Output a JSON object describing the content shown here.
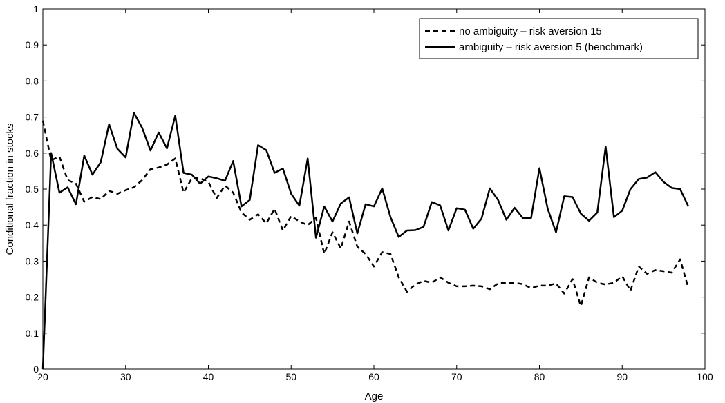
{
  "chart_data": {
    "type": "line",
    "title": "",
    "xlabel": "Age",
    "ylabel": "Conditional fraction in stocks",
    "xlim": [
      20,
      100
    ],
    "ylim": [
      0,
      1
    ],
    "xticks": [
      20,
      30,
      40,
      50,
      60,
      70,
      80,
      90,
      100
    ],
    "yticks": [
      0,
      0.1,
      0.2,
      0.3,
      0.4,
      0.5,
      0.6,
      0.7,
      0.8,
      0.9,
      1
    ],
    "xtick_labels": [
      "20",
      "30",
      "40",
      "50",
      "60",
      "70",
      "80",
      "90",
      "100"
    ],
    "ytick_labels": [
      "0",
      "0.1",
      "0.2",
      "0.3",
      "0.4",
      "0.5",
      "0.6",
      "0.7",
      "0.8",
      "0.9",
      "1"
    ],
    "grid": false,
    "legend_position": "top-right",
    "x": [
      20,
      21,
      22,
      23,
      24,
      25,
      26,
      27,
      28,
      29,
      30,
      31,
      32,
      33,
      34,
      35,
      36,
      37,
      38,
      39,
      40,
      41,
      42,
      43,
      44,
      45,
      46,
      47,
      48,
      49,
      50,
      51,
      52,
      53,
      54,
      55,
      56,
      57,
      58,
      59,
      60,
      61,
      62,
      63,
      64,
      65,
      66,
      67,
      68,
      69,
      70,
      71,
      72,
      73,
      74,
      75,
      76,
      77,
      78,
      79,
      80,
      81,
      82,
      83,
      84,
      85,
      86,
      87,
      88,
      89,
      90,
      91,
      92,
      93,
      94,
      95,
      96,
      97,
      98
    ],
    "series": [
      {
        "name": "no ambiguity – risk aversion 15",
        "style": "dashed",
        "color": "#000000",
        "values": [
          0.69,
          0.58,
          0.59,
          0.525,
          0.515,
          0.465,
          0.478,
          0.472,
          0.495,
          0.487,
          0.497,
          0.505,
          0.525,
          0.555,
          0.56,
          0.568,
          0.585,
          0.49,
          0.53,
          0.53,
          0.52,
          0.475,
          0.51,
          0.49,
          0.435,
          0.415,
          0.43,
          0.405,
          0.445,
          0.385,
          0.425,
          0.41,
          0.4,
          0.42,
          0.32,
          0.38,
          0.335,
          0.41,
          0.34,
          0.32,
          0.285,
          0.325,
          0.32,
          0.255,
          0.215,
          0.235,
          0.245,
          0.24,
          0.255,
          0.24,
          0.23,
          0.23,
          0.232,
          0.23,
          0.222,
          0.238,
          0.24,
          0.24,
          0.236,
          0.225,
          0.232,
          0.232,
          0.238,
          0.21,
          0.25,
          0.175,
          0.255,
          0.24,
          0.235,
          0.24,
          0.258,
          0.218,
          0.285,
          0.265,
          0.275,
          0.272,
          0.268,
          0.305,
          0.225
        ]
      },
      {
        "name": "ambiguity – risk aversion 5 (benchmark)",
        "style": "solid",
        "color": "#000000",
        "values": [
          0.0,
          0.6,
          0.49,
          0.505,
          0.458,
          0.593,
          0.54,
          0.575,
          0.68,
          0.612,
          0.588,
          0.712,
          0.67,
          0.607,
          0.657,
          0.613,
          0.704,
          0.545,
          0.54,
          0.515,
          0.535,
          0.53,
          0.523,
          0.578,
          0.452,
          0.47,
          0.622,
          0.608,
          0.545,
          0.557,
          0.487,
          0.454,
          0.585,
          0.365,
          0.452,
          0.41,
          0.46,
          0.477,
          0.377,
          0.458,
          0.452,
          0.502,
          0.422,
          0.367,
          0.385,
          0.386,
          0.395,
          0.464,
          0.455,
          0.385,
          0.447,
          0.443,
          0.39,
          0.418,
          0.502,
          0.47,
          0.415,
          0.448,
          0.42,
          0.42,
          0.558,
          0.445,
          0.38,
          0.48,
          0.478,
          0.432,
          0.412,
          0.435,
          0.618,
          0.422,
          0.44,
          0.5,
          0.528,
          0.532,
          0.547,
          0.52,
          0.503,
          0.5,
          0.452
        ]
      }
    ]
  }
}
